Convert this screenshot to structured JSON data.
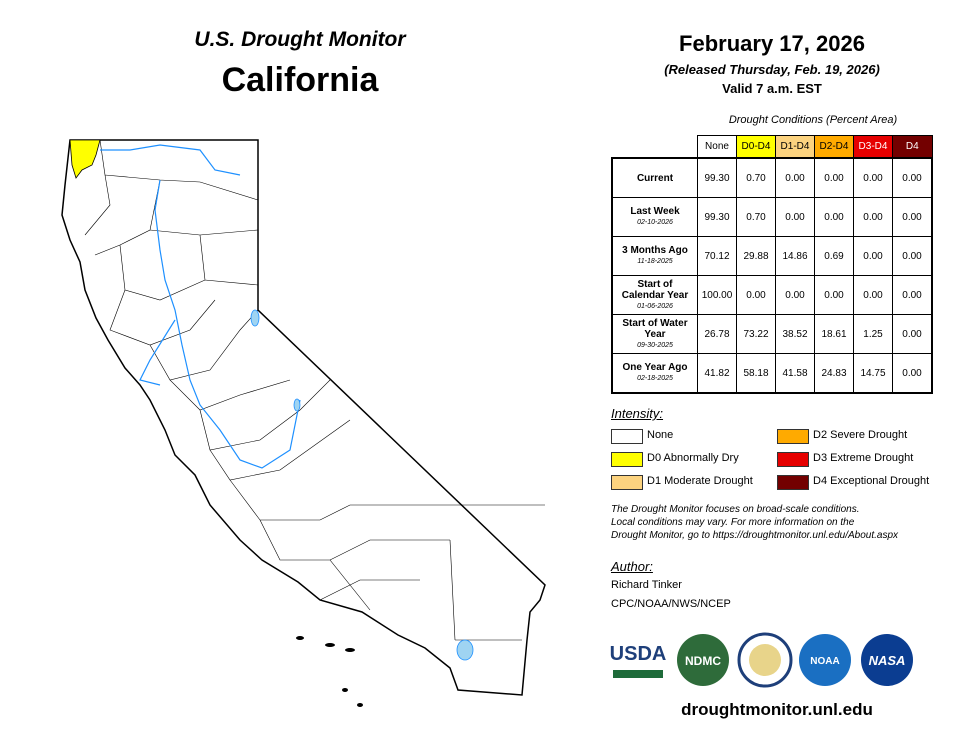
{
  "header": {
    "subtitle": "U.S. Drought Monitor",
    "title": "California"
  },
  "date": {
    "date": "February 17, 2026",
    "released": "(Released Thursday, Feb. 19, 2026)",
    "valid": "Valid 7 a.m. EST"
  },
  "table": {
    "caption": "Drought Conditions (Percent Area)",
    "columns": [
      {
        "label": "None",
        "color": "#ffffff"
      },
      {
        "label": "D0-D4",
        "color": "#ffff00"
      },
      {
        "label": "D1-D4",
        "color": "#fcd37f"
      },
      {
        "label": "D2-D4",
        "color": "#ffaa00"
      },
      {
        "label": "D3-D4",
        "color": "#e60000"
      },
      {
        "label": "D4",
        "color": "#730000"
      }
    ],
    "rows": [
      {
        "label": "Current",
        "values": [
          "99.30",
          "0.70",
          "0.00",
          "0.00",
          "0.00",
          "0.00"
        ]
      },
      {
        "label": "Last Week",
        "date": "02-10-2026",
        "values": [
          "99.30",
          "0.70",
          "0.00",
          "0.00",
          "0.00",
          "0.00"
        ]
      },
      {
        "label": "3 Months Ago",
        "date": "11-18-2025",
        "values": [
          "70.12",
          "29.88",
          "14.86",
          "0.69",
          "0.00",
          "0.00"
        ]
      },
      {
        "label": "Start of Calendar Year",
        "date": "01-06-2026",
        "values": [
          "100.00",
          "0.00",
          "0.00",
          "0.00",
          "0.00",
          "0.00"
        ]
      },
      {
        "label": "Start of Water Year",
        "date": "09-30-2025",
        "values": [
          "26.78",
          "73.22",
          "38.52",
          "18.61",
          "1.25",
          "0.00"
        ]
      },
      {
        "label": "One Year Ago",
        "date": "02-18-2025",
        "values": [
          "41.82",
          "58.18",
          "41.58",
          "24.83",
          "14.75",
          "0.00"
        ]
      }
    ]
  },
  "legend": {
    "title": "Intensity:",
    "items": [
      {
        "label": "None",
        "color": "#ffffff"
      },
      {
        "label": "D0 Abnormally Dry",
        "color": "#ffff00"
      },
      {
        "label": "D1 Moderate Drought",
        "color": "#fcd37f"
      },
      {
        "label": "D2 Severe Drought",
        "color": "#ffaa00"
      },
      {
        "label": "D3 Extreme Drought",
        "color": "#e60000"
      },
      {
        "label": "D4 Exceptional Drought",
        "color": "#730000"
      }
    ]
  },
  "note": [
    "The Drought Monitor focuses on broad-scale conditions.",
    "Local conditions may vary. For more information on the",
    "Drought Monitor, go to https://droughtmonitor.unl.edu/About.aspx"
  ],
  "author": {
    "title": "Author:",
    "name": "Richard Tinker",
    "org": "CPC/NOAA/NWS/NCEP"
  },
  "logos": [
    "USDA",
    "NDMC",
    "NOAA",
    "NASA"
  ],
  "url": "droughtmonitor.unl.edu"
}
